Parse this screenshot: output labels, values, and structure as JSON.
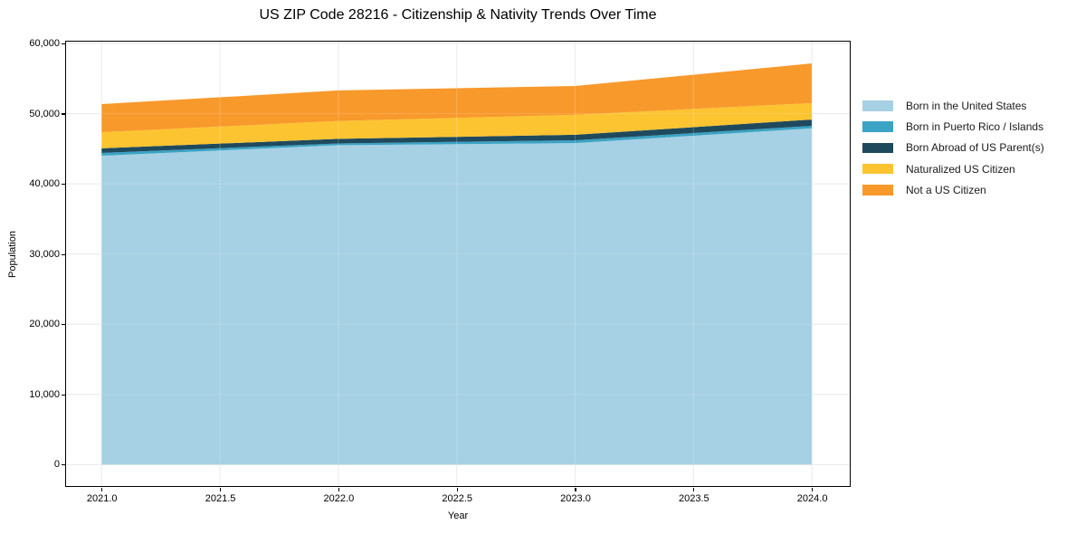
{
  "chart_data": {
    "type": "area",
    "stacked": true,
    "title": "US ZIP Code 28216 - Citizenship & Nativity Trends Over Time",
    "xlabel": "Year",
    "ylabel": "Population",
    "x": [
      2021,
      2022,
      2023,
      2024
    ],
    "series": [
      {
        "name": "Born in the United States",
        "color": "#A6D0E4",
        "values": [
          44000,
          45500,
          45800,
          47900
        ]
      },
      {
        "name": "Born in Puerto Rico / Islands",
        "color": "#3BA3C4",
        "values": [
          400,
          250,
          400,
          350
        ]
      },
      {
        "name": "Born Abroad of US Parent(s)",
        "color": "#1F4A5E",
        "values": [
          650,
          650,
          780,
          900
        ]
      },
      {
        "name": "Naturalized US Citizen",
        "color": "#FDC431",
        "values": [
          2300,
          2550,
          2850,
          2350
        ]
      },
      {
        "name": "Not a US Citizen",
        "color": "#F8992C",
        "values": [
          4000,
          4350,
          4100,
          5650
        ]
      }
    ],
    "stacked_totals": [
      51350,
      53300,
      53930,
      57150
    ],
    "x_tick_values": [
      2021,
      2021.5,
      2022,
      2022.5,
      2023,
      2023.5,
      2024
    ],
    "x_tick_labels": [
      "2021.0",
      "2021.5",
      "2022.0",
      "2022.5",
      "2023.0",
      "2023.5",
      "2024.0"
    ],
    "y_tick_values": [
      0,
      10000,
      20000,
      30000,
      40000,
      50000,
      60000
    ],
    "y_tick_labels": [
      "0",
      "10,000",
      "20,000",
      "30,000",
      "40,000",
      "50,000",
      "60,000"
    ],
    "xlim": [
      2020.85,
      2024.16
    ],
    "ylim": [
      -3050,
      60250
    ],
    "grid": true,
    "legend_position": "right"
  },
  "colors": {
    "background": "#ffffff",
    "grid": "#e6e6e6",
    "axis": "#000000",
    "text": "#1a1a1a"
  }
}
